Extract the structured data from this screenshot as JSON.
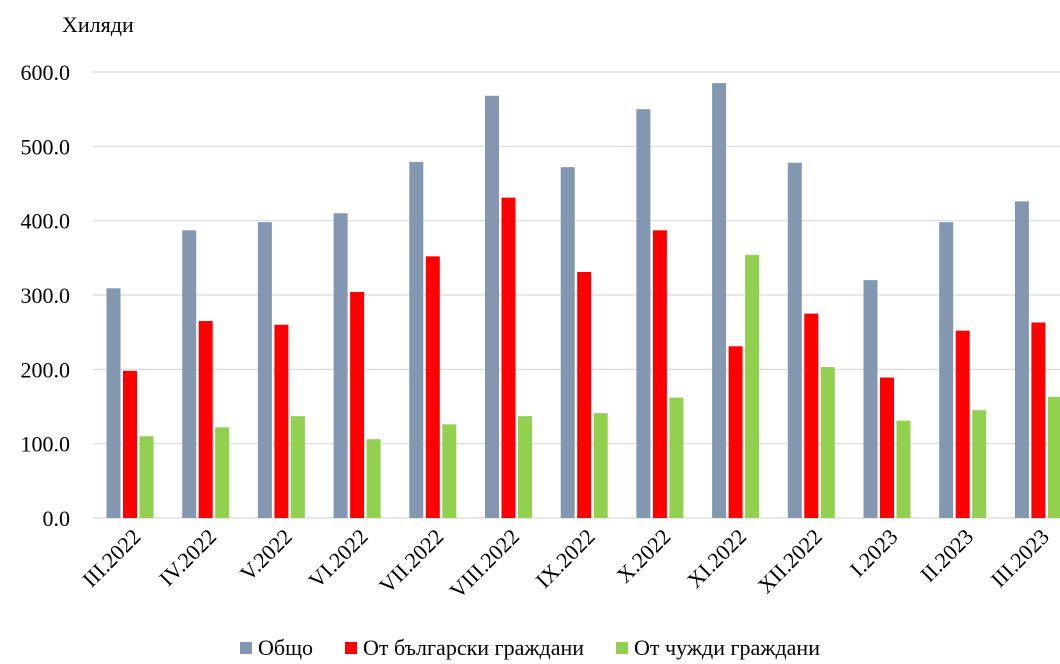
{
  "chart_data": {
    "type": "bar",
    "unit_label": "Хиляди",
    "categories": [
      "III.2022",
      "IV.2022",
      "V.2022",
      "VI.2022",
      "VII.2022",
      "VIII.2022",
      "IX.2022",
      "X.2022",
      "XI.2022",
      "XII.2022",
      "I.2023",
      "II.2023",
      "III.2023"
    ],
    "series": [
      {
        "name": "Общо",
        "color": "#8497b0",
        "values": [
          309,
          387,
          398,
          410,
          479,
          568,
          472,
          550,
          585,
          478,
          320,
          398,
          426
        ]
      },
      {
        "name": "От български граждани",
        "color": "#ff0000",
        "values": [
          198,
          265,
          260,
          304,
          352,
          431,
          331,
          387,
          231,
          275,
          189,
          252,
          263
        ]
      },
      {
        "name": "От чужди граждани",
        "color": "#92d050",
        "values": [
          110,
          122,
          137,
          106,
          126,
          137,
          141,
          162,
          354,
          203,
          131,
          145,
          163
        ]
      }
    ],
    "ylim": [
      0,
      600
    ],
    "yticks": [
      "0.0",
      "100.0",
      "200.0",
      "300.0",
      "400.0",
      "500.0",
      "600.0"
    ],
    "grid": true,
    "legend_position": "bottom"
  }
}
